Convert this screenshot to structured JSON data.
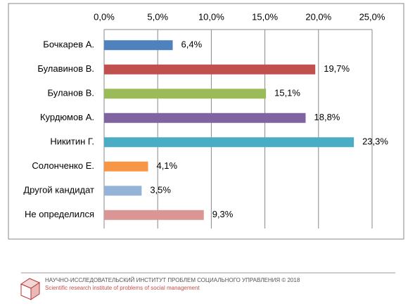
{
  "chart_data": {
    "type": "barh",
    "categories": [
      "Бочкарев А.",
      "Булавинов В.",
      "Буланов В.",
      "Курдюмов А.",
      "Никитин Г.",
      "Солонченко Е.",
      "Другой кандидат",
      "Не определился"
    ],
    "values": [
      6.4,
      19.7,
      15.1,
      18.8,
      23.3,
      4.1,
      3.5,
      9.3
    ],
    "value_labels": [
      "6,4%",
      "19,7%",
      "15,1%",
      "18,8%",
      "23,3%",
      "4,1%",
      "3,5%",
      "9,3%"
    ],
    "colors": [
      "#4f81bd",
      "#c0504d",
      "#9bbb59",
      "#8064a2",
      "#4bacc6",
      "#f79646",
      "#95b3d7",
      "#d99694"
    ],
    "xlim": [
      0,
      25
    ],
    "xticks": [
      {
        "value": 0,
        "label": "0,0%"
      },
      {
        "value": 5,
        "label": "5,0%"
      },
      {
        "value": 10,
        "label": "10,0%"
      },
      {
        "value": 15,
        "label": "15,0%"
      },
      {
        "value": 20,
        "label": "20,0%"
      },
      {
        "value": 25,
        "label": "25,0%"
      }
    ],
    "grid": true
  },
  "footer": {
    "title": "НАУЧНО-ИССЛЕДОВАТЕЛЬСКИЙ ИНСТИТУТ ПРОБЛЕМ СОЦИАЛЬНОГО УПРАВЛЕНИЯ  © 2018",
    "subtitle": "Scientific research institute of problems of social management"
  }
}
